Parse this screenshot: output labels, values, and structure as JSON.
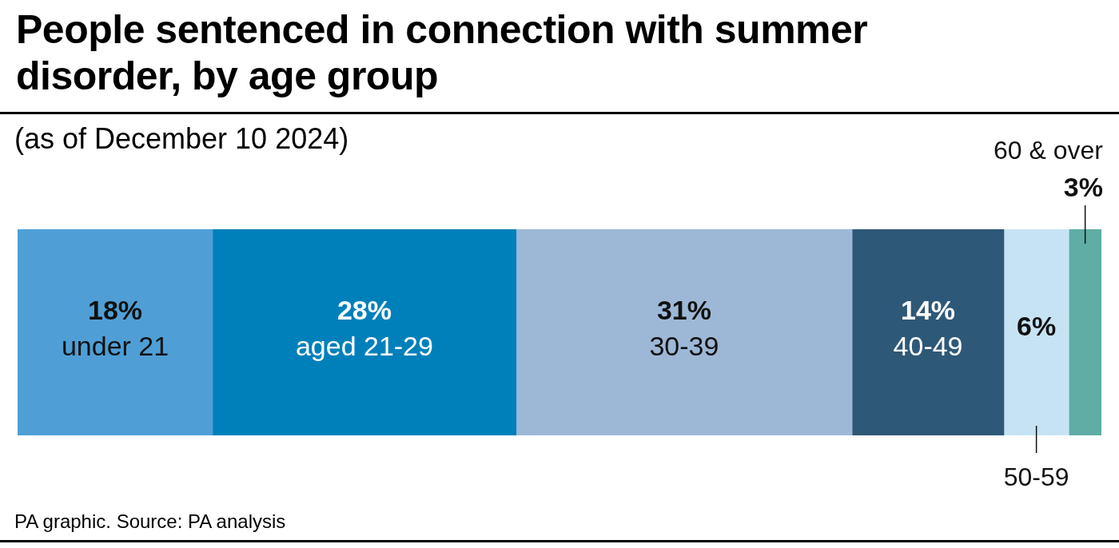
{
  "chart_data": {
    "type": "bar",
    "title": "People sentenced in connection with summer disorder, by age group",
    "subtitle": "(as of December 10 2024)",
    "source": "PA graphic. Source: PA analysis",
    "orientation": "horizontal",
    "stacked": true,
    "data_labels": true,
    "tick_labels": false,
    "grid": false,
    "xlim": [
      0,
      100
    ],
    "series": [
      {
        "name": "under 21",
        "color": "#4f9fd6",
        "values": [
          18
        ],
        "value_labels": [
          "18%"
        ]
      },
      {
        "name": "aged 21-29",
        "color": "#0080bb",
        "values": [
          28
        ],
        "value_labels": [
          "28%"
        ]
      },
      {
        "name": "30-39",
        "color": "#9db8d7",
        "values": [
          31
        ],
        "value_labels": [
          "31%"
        ]
      },
      {
        "name": "40-49",
        "color": "#2e5878",
        "values": [
          14
        ],
        "value_labels": [
          "14%"
        ]
      },
      {
        "name": "50-59",
        "color": "#c6e3f4",
        "values": [
          6
        ],
        "value_labels": [
          "6%"
        ]
      },
      {
        "name": "60 & over",
        "color": "#5fada5",
        "values": [
          3
        ],
        "value_labels": [
          "3%"
        ]
      }
    ]
  }
}
